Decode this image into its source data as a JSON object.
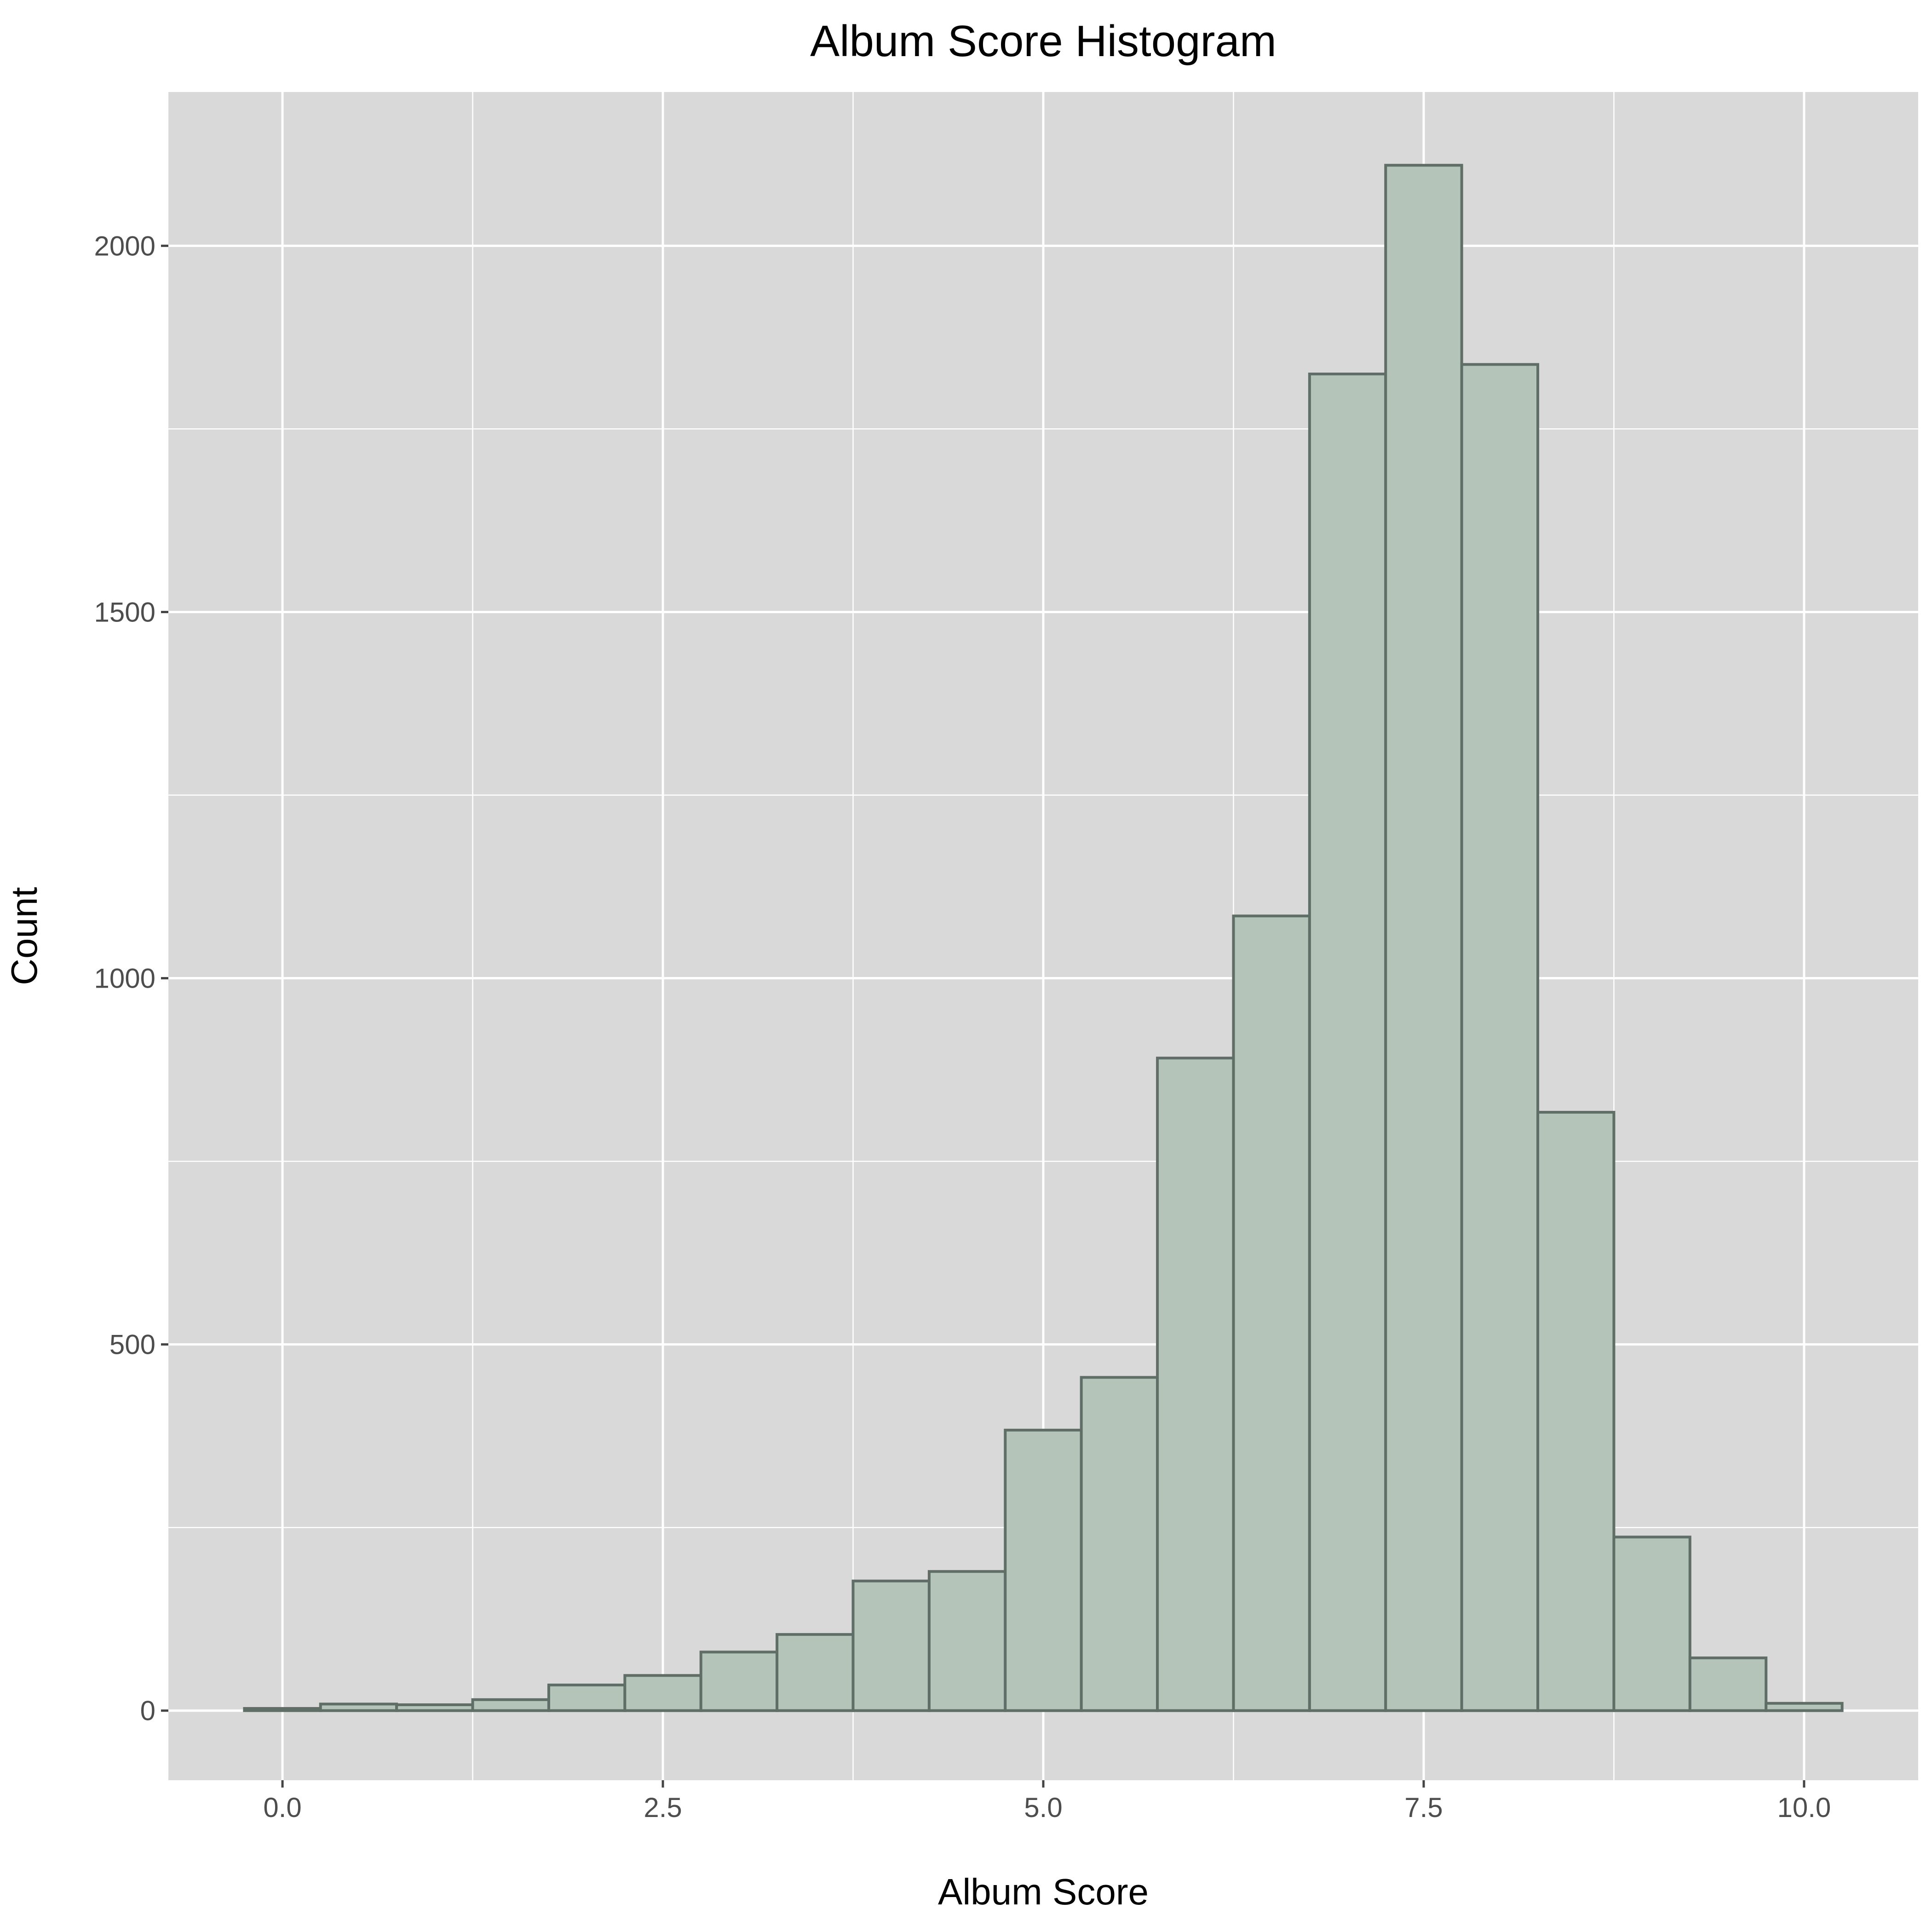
{
  "chart_data": {
    "type": "bar",
    "title": "Album Score Histogram",
    "xlabel": "Album Score",
    "ylabel": "Count",
    "x_ticks": [
      "0.0",
      "2.5",
      "5.0",
      "7.5",
      "10.0"
    ],
    "y_ticks": [
      "0",
      "500",
      "1000",
      "1500",
      "2000"
    ],
    "xlim": [
      -0.75,
      10.75
    ],
    "ylim": [
      -95,
      2210
    ],
    "bin_width": 0.5,
    "grid": true,
    "colors": {
      "panel": "#d9d9d9",
      "grid": "#ffffff",
      "bar_fill": "#b4c4b9",
      "bar_outline": "#5f6f68"
    },
    "bins": [
      {
        "center": 0.0,
        "count": 3
      },
      {
        "center": 0.5,
        "count": 9
      },
      {
        "center": 1.0,
        "count": 8
      },
      {
        "center": 1.5,
        "count": 15
      },
      {
        "center": 2.0,
        "count": 35
      },
      {
        "center": 2.5,
        "count": 48
      },
      {
        "center": 3.0,
        "count": 80
      },
      {
        "center": 3.5,
        "count": 104
      },
      {
        "center": 4.0,
        "count": 177
      },
      {
        "center": 4.5,
        "count": 190
      },
      {
        "center": 5.0,
        "count": 383
      },
      {
        "center": 5.5,
        "count": 455
      },
      {
        "center": 6.0,
        "count": 891
      },
      {
        "center": 6.5,
        "count": 1085
      },
      {
        "center": 7.0,
        "count": 1825
      },
      {
        "center": 7.5,
        "count": 2110
      },
      {
        "center": 8.0,
        "count": 1838
      },
      {
        "center": 8.5,
        "count": 817
      },
      {
        "center": 9.0,
        "count": 237
      },
      {
        "center": 9.5,
        "count": 72
      },
      {
        "center": 10.0,
        "count": 10
      }
    ]
  }
}
